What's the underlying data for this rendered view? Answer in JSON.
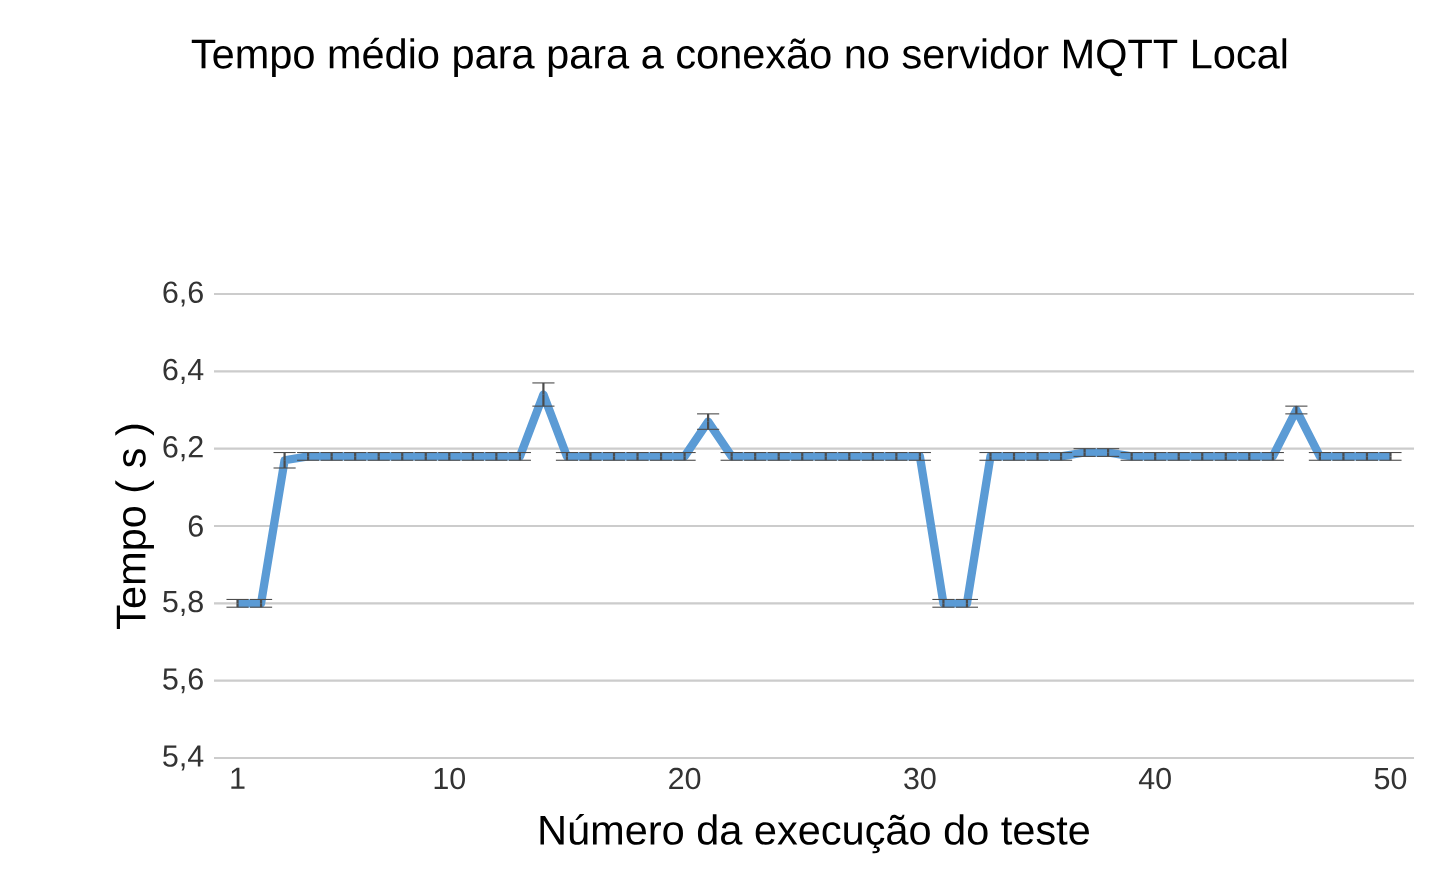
{
  "chart_data": {
    "type": "line",
    "title": "Tempo médio para para a conexão no servidor  MQTT Local",
    "xlabel": "Número da execução do teste",
    "ylabel": "Tempo  ( s )",
    "x": [
      1,
      2,
      3,
      4,
      5,
      6,
      7,
      8,
      9,
      10,
      11,
      12,
      13,
      14,
      15,
      16,
      17,
      18,
      19,
      20,
      21,
      22,
      23,
      24,
      25,
      26,
      27,
      28,
      29,
      30,
      31,
      32,
      33,
      34,
      35,
      36,
      37,
      38,
      39,
      40,
      41,
      42,
      43,
      44,
      45,
      46,
      47,
      48,
      49,
      50
    ],
    "series": [
      {
        "color": "#5b9bd5",
        "values": [
          5.8,
          5.8,
          6.17,
          6.18,
          6.18,
          6.18,
          6.18,
          6.18,
          6.18,
          6.18,
          6.18,
          6.18,
          6.18,
          6.34,
          6.18,
          6.18,
          6.18,
          6.18,
          6.18,
          6.18,
          6.27,
          6.18,
          6.18,
          6.18,
          6.18,
          6.18,
          6.18,
          6.18,
          6.18,
          6.18,
          5.8,
          5.8,
          6.18,
          6.18,
          6.18,
          6.18,
          6.19,
          6.19,
          6.18,
          6.18,
          6.18,
          6.18,
          6.18,
          6.18,
          6.18,
          6.3,
          6.18,
          6.18,
          6.18,
          6.18
        ],
        "errors": [
          0.01,
          0.01,
          0.02,
          0.01,
          0.01,
          0.01,
          0.01,
          0.01,
          0.01,
          0.01,
          0.01,
          0.01,
          0.01,
          0.03,
          0.01,
          0.01,
          0.01,
          0.01,
          0.01,
          0.01,
          0.02,
          0.01,
          0.01,
          0.01,
          0.01,
          0.01,
          0.01,
          0.01,
          0.01,
          0.01,
          0.01,
          0.01,
          0.01,
          0.01,
          0.01,
          0.01,
          0.01,
          0.01,
          0.01,
          0.01,
          0.01,
          0.01,
          0.01,
          0.01,
          0.01,
          0.01,
          0.01,
          0.01,
          0.01,
          0.01
        ]
      }
    ],
    "xlim": [
      0,
      51
    ],
    "xticks": [
      1,
      10,
      20,
      30,
      40,
      50
    ],
    "ylim": [
      5.4,
      6.6
    ],
    "yticks": [
      {
        "value": 5.4,
        "label": "5,4"
      },
      {
        "value": 5.6,
        "label": "5,6"
      },
      {
        "value": 5.8,
        "label": "5,8"
      },
      {
        "value": 6,
        "label": "6"
      },
      {
        "value": 6.2,
        "label": "6,2"
      },
      {
        "value": 6.4,
        "label": "6,4"
      },
      {
        "value": 6.6,
        "label": "6,6"
      }
    ],
    "grid": "y",
    "marker": "none",
    "line_style": "solid"
  }
}
